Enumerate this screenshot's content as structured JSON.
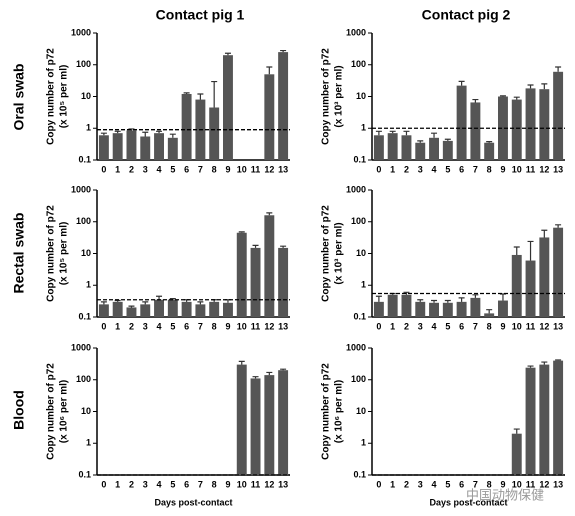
{
  "column_titles": [
    "Contact pig 1",
    "Contact pig 2"
  ],
  "row_labels": [
    "Oral swab",
    "Rectal swab",
    "Blood"
  ],
  "watermark": "中国动物保健",
  "chart_data": [
    {
      "type": "bar",
      "ylabel": [
        "Copy number of p72",
        "(x 10⁵ per ml)"
      ],
      "log": true,
      "color": "#555555",
      "categories": [
        "0",
        "1",
        "2",
        "3",
        "4",
        "5",
        "6",
        "7",
        "8",
        "9",
        "10",
        "11",
        "12",
        "13"
      ],
      "values": [
        0.6,
        0.7,
        0.85,
        0.55,
        0.7,
        0.5,
        12,
        8,
        4.5,
        200,
        null,
        null,
        50,
        250
      ],
      "errors": [
        0.1,
        0.1,
        0.1,
        0.2,
        0.1,
        0.15,
        1,
        4,
        25,
        30,
        null,
        null,
        35,
        30
      ],
      "threshold": 0.9,
      "ylim": [
        0.1,
        1000
      ],
      "yticks": [
        0.1,
        1,
        10,
        100,
        1000
      ]
    },
    {
      "type": "bar",
      "ylabel": [
        "Copy number of p72",
        "(x 10³ per ml)"
      ],
      "log": true,
      "color": "#555555",
      "categories": [
        "0",
        "1",
        "2",
        "3",
        "4",
        "5",
        "6",
        "7",
        "8",
        "9",
        "10",
        "11",
        "12",
        "13"
      ],
      "values": [
        0.6,
        0.7,
        0.6,
        0.35,
        0.5,
        0.4,
        22,
        6.5,
        0.35,
        10,
        8,
        18,
        17,
        60
      ],
      "errors": [
        0.2,
        0.1,
        0.2,
        0.05,
        0.2,
        0.05,
        8,
        1.5,
        0.03,
        0.5,
        1.5,
        5,
        8,
        25
      ],
      "threshold": 1.0,
      "ylim": [
        0.1,
        1000
      ],
      "yticks": [
        0.1,
        1,
        10,
        100,
        1000
      ]
    },
    {
      "type": "bar",
      "ylabel": [
        "Copy number of p72",
        "(x 10⁵ per ml)"
      ],
      "log": true,
      "color": "#555555",
      "categories": [
        "0",
        "1",
        "2",
        "3",
        "4",
        "5",
        "6",
        "7",
        "8",
        "9",
        "10",
        "11",
        "12",
        "13"
      ],
      "values": [
        0.25,
        0.3,
        0.2,
        0.25,
        0.35,
        0.35,
        0.3,
        0.25,
        0.3,
        0.28,
        45,
        15,
        160,
        15
      ],
      "errors": [
        0.05,
        0.03,
        0.02,
        0.05,
        0.1,
        0.03,
        0.05,
        0.05,
        0.05,
        0.07,
        3,
        3,
        30,
        2
      ],
      "threshold": 0.35,
      "ylim": [
        0.1,
        1000
      ],
      "yticks": [
        0.1,
        1,
        10,
        100,
        1000
      ]
    },
    {
      "type": "bar",
      "ylabel": [
        "Copy number of p72",
        "(x 10³ per ml)"
      ],
      "log": true,
      "color": "#555555",
      "categories": [
        "0",
        "1",
        "2",
        "3",
        "4",
        "5",
        "6",
        "7",
        "8",
        "9",
        "10",
        "11",
        "12",
        "13"
      ],
      "values": [
        0.3,
        0.5,
        0.5,
        0.3,
        0.28,
        0.28,
        0.3,
        0.4,
        0.13,
        0.33,
        9,
        6,
        32,
        65
      ],
      "errors": [
        0.15,
        0.05,
        0.1,
        0.05,
        0.05,
        0.05,
        0.1,
        0.1,
        0.04,
        0.2,
        7,
        18,
        22,
        15
      ],
      "threshold": 0.55,
      "ylim": [
        0.1,
        1000
      ],
      "yticks": [
        0.1,
        1,
        10,
        100,
        1000
      ]
    },
    {
      "type": "bar",
      "ylabel": [
        "Copy number of p72",
        "(x 10⁶ per ml)"
      ],
      "log": true,
      "color": "#555555",
      "xlabel": "Days post-contact",
      "categories": [
        "0",
        "1",
        "2",
        "3",
        "4",
        "5",
        "6",
        "7",
        "8",
        "9",
        "10",
        "11",
        "12",
        "13"
      ],
      "values": [
        null,
        null,
        null,
        null,
        null,
        null,
        null,
        null,
        null,
        null,
        300,
        110,
        140,
        200
      ],
      "errors": [
        null,
        null,
        null,
        null,
        null,
        null,
        null,
        null,
        null,
        null,
        80,
        15,
        30,
        15
      ],
      "threshold": 0.1,
      "ylim": [
        0.1,
        1000
      ],
      "yticks": [
        0.1,
        1,
        10,
        100,
        1000
      ]
    },
    {
      "type": "bar",
      "ylabel": [
        "Copy number of p72",
        "(x 10⁶ per ml)"
      ],
      "log": true,
      "color": "#555555",
      "xlabel": "Days post-contact",
      "categories": [
        "0",
        "1",
        "2",
        "3",
        "4",
        "5",
        "6",
        "7",
        "8",
        "9",
        "10",
        "11",
        "12",
        "13"
      ],
      "values": [
        null,
        null,
        null,
        null,
        null,
        null,
        null,
        null,
        null,
        null,
        2,
        240,
        300,
        400
      ],
      "errors": [
        null,
        null,
        null,
        null,
        null,
        null,
        null,
        null,
        null,
        null,
        0.8,
        30,
        60,
        20
      ],
      "threshold": 0.1,
      "ylim": [
        0.1,
        1000
      ],
      "yticks": [
        0.1,
        1,
        10,
        100,
        1000
      ]
    }
  ]
}
